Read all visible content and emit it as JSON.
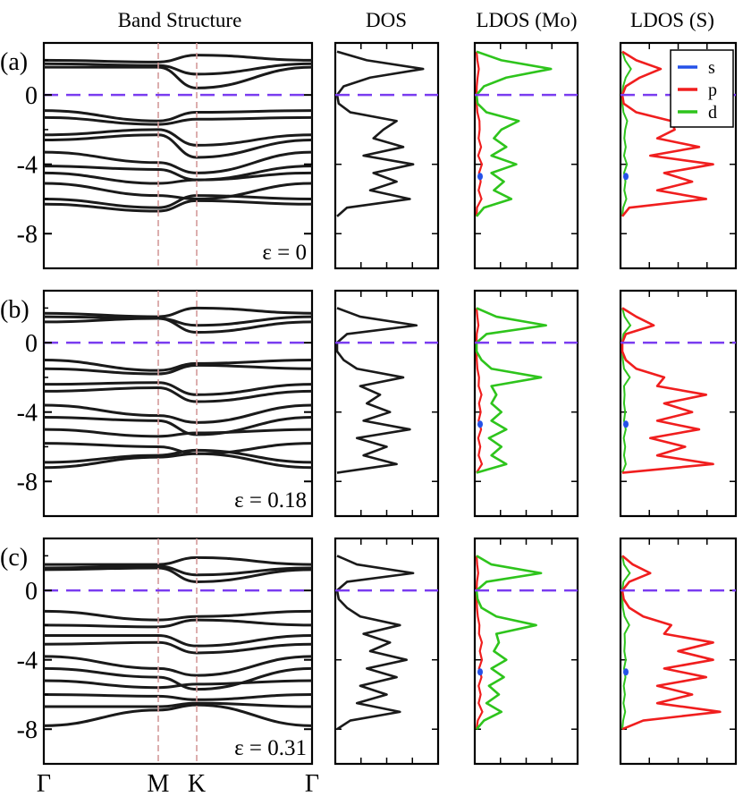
{
  "figure": {
    "column_titles": [
      "Band Structure",
      "DOS",
      "LDOS (Mo)",
      "LDOS (S)"
    ],
    "kpoint_labels": [
      "Γ",
      "M",
      "K",
      "Γ"
    ],
    "legend": [
      {
        "label": "s",
        "color": "#2451e8"
      },
      {
        "label": "p",
        "color": "#f01e1e"
      },
      {
        "label": "d",
        "color": "#2ec41c"
      }
    ],
    "colors": {
      "bands": "#1a1a1a",
      "fermi": "#7a3cf0",
      "kline": "#d49a9a"
    }
  },
  "chart_data": [
    {
      "type": "line",
      "panel": "(a)",
      "strain_label": "ε = 0",
      "ylim": [
        -10,
        3
      ],
      "yticks": [
        0,
        -4,
        -8
      ],
      "bands": [
        [
          -6.3,
          -6.7,
          -6.1,
          -6.3
        ],
        [
          -6.0,
          -6.5,
          -5.8,
          -6.0
        ],
        [
          -5.1,
          -5.8,
          -6.0,
          -5.1
        ],
        [
          -4.5,
          -5.1,
          -4.9,
          -4.5
        ],
        [
          -4.1,
          -4.3,
          -4.9,
          -4.1
        ],
        [
          -3.3,
          -3.9,
          -4.5,
          -3.3
        ],
        [
          -2.6,
          -2.3,
          -3.6,
          -2.6
        ],
        [
          -2.3,
          -2.0,
          -2.9,
          -2.3
        ],
        [
          -1.3,
          -1.7,
          -1.4,
          -1.3
        ],
        [
          -0.9,
          -1.5,
          -1.0,
          -0.9
        ],
        [
          1.6,
          1.6,
          0.4,
          1.6
        ],
        [
          1.8,
          1.7,
          1.2,
          1.8
        ],
        [
          2.0,
          1.9,
          2.3,
          2.0
        ]
      ],
      "dos_energy": [
        -7.0,
        -6.5,
        -6.0,
        -5.5,
        -5.0,
        -4.5,
        -4.0,
        -3.5,
        -3.0,
        -2.5,
        -2.0,
        -1.5,
        -1.0,
        -0.5,
        0.0,
        0.5,
        1.0,
        1.5,
        2.0,
        2.5
      ],
      "dos": [
        0.0,
        0.3,
        2.2,
        1.0,
        1.8,
        1.1,
        2.3,
        0.8,
        2.0,
        1.1,
        1.4,
        1.8,
        0.4,
        0.05,
        0.0,
        0.2,
        1.0,
        2.6,
        0.9,
        0.0
      ],
      "ldos_mo_d": [
        0.0,
        0.15,
        0.7,
        0.35,
        0.55,
        0.3,
        0.8,
        0.3,
        0.6,
        0.35,
        0.5,
        0.85,
        0.2,
        0.02,
        0.0,
        0.15,
        0.6,
        1.5,
        0.5,
        0.0
      ],
      "ldos_s_p": [
        0.0,
        0.1,
        1.2,
        0.5,
        1.0,
        0.6,
        1.3,
        0.4,
        1.1,
        0.5,
        0.75,
        0.7,
        0.2,
        0.02,
        0.0,
        0.05,
        0.25,
        0.55,
        0.2,
        0.0
      ]
    },
    {
      "type": "line",
      "panel": "(b)",
      "strain_label": "ε = 0.18",
      "ylim": [
        -10,
        3
      ],
      "yticks": [
        0,
        -4,
        -8
      ],
      "bands": [
        [
          -7.2,
          -6.6,
          -6.4,
          -7.2
        ],
        [
          -6.9,
          -6.5,
          -6.2,
          -6.9
        ],
        [
          -5.8,
          -6.0,
          -6.4,
          -5.8
        ],
        [
          -5.0,
          -5.4,
          -5.2,
          -5.0
        ],
        [
          -4.3,
          -4.5,
          -5.3,
          -4.3
        ],
        [
          -3.6,
          -4.2,
          -4.6,
          -3.6
        ],
        [
          -2.8,
          -2.6,
          -3.4,
          -2.8
        ],
        [
          -2.4,
          -2.3,
          -3.0,
          -2.4
        ],
        [
          -1.5,
          -1.8,
          -1.3,
          -1.5
        ],
        [
          -1.0,
          -1.6,
          -1.2,
          -1.0
        ],
        [
          1.2,
          1.4,
          0.6,
          1.2
        ],
        [
          1.5,
          1.4,
          1.0,
          1.5
        ],
        [
          1.7,
          1.5,
          2.0,
          1.7
        ]
      ],
      "dos_energy": [
        -7.5,
        -7.0,
        -6.5,
        -6.0,
        -5.5,
        -5.0,
        -4.5,
        -4.0,
        -3.5,
        -3.0,
        -2.5,
        -2.0,
        -1.5,
        -1.0,
        -0.5,
        0.0,
        0.5,
        1.0,
        1.5,
        2.0
      ],
      "dos": [
        0.0,
        1.8,
        0.8,
        1.5,
        0.6,
        2.2,
        0.8,
        1.6,
        0.9,
        1.3,
        0.7,
        2.0,
        0.6,
        0.2,
        0.0,
        0.0,
        0.3,
        2.4,
        0.7,
        0.0
      ],
      "ldos_mo_d": [
        0.0,
        0.6,
        0.3,
        0.5,
        0.25,
        0.6,
        0.3,
        0.5,
        0.3,
        0.4,
        0.3,
        1.3,
        0.3,
        0.1,
        0.0,
        0.0,
        0.2,
        1.4,
        0.4,
        0.0
      ],
      "ldos_s_p": [
        0.0,
        1.3,
        0.5,
        0.9,
        0.4,
        1.1,
        0.5,
        1.0,
        0.6,
        1.2,
        0.5,
        0.6,
        0.2,
        0.05,
        0.0,
        0.0,
        0.05,
        0.45,
        0.2,
        0.0
      ]
    },
    {
      "type": "line",
      "panel": "(c)",
      "strain_label": "ε = 0.31",
      "ylim": [
        -10,
        3
      ],
      "yticks": [
        0,
        -4,
        -8
      ],
      "bands": [
        [
          -7.8,
          -6.9,
          -6.6,
          -7.8
        ],
        [
          -6.7,
          -6.7,
          -6.5,
          -6.7
        ],
        [
          -6.0,
          -6.1,
          -6.3,
          -6.0
        ],
        [
          -5.2,
          -5.6,
          -5.4,
          -5.2
        ],
        [
          -4.5,
          -5.0,
          -5.7,
          -4.5
        ],
        [
          -3.8,
          -4.5,
          -4.9,
          -3.8
        ],
        [
          -3.1,
          -3.0,
          -3.6,
          -3.1
        ],
        [
          -2.6,
          -2.6,
          -3.2,
          -2.6
        ],
        [
          -2.0,
          -2.1,
          -1.7,
          -2.0
        ],
        [
          -1.2,
          -1.7,
          -1.5,
          -1.2
        ],
        [
          1.2,
          1.3,
          0.5,
          1.2
        ],
        [
          1.3,
          1.4,
          0.9,
          1.3
        ],
        [
          1.5,
          1.5,
          1.9,
          1.5
        ]
      ],
      "dos_energy": [
        -8.0,
        -7.5,
        -7.0,
        -6.5,
        -6.0,
        -5.5,
        -5.0,
        -4.5,
        -4.0,
        -3.5,
        -3.0,
        -2.5,
        -2.0,
        -1.5,
        -1.0,
        -0.5,
        0.0,
        0.5,
        1.0,
        1.5,
        2.0
      ],
      "dos": [
        0.0,
        0.4,
        1.9,
        0.6,
        1.5,
        0.7,
        1.8,
        0.9,
        2.1,
        1.0,
        1.6,
        0.8,
        1.9,
        0.7,
        0.3,
        0.05,
        0.0,
        0.3,
        2.3,
        0.6,
        0.0
      ],
      "ldos_mo_d": [
        0.0,
        0.15,
        0.5,
        0.2,
        0.45,
        0.25,
        0.55,
        0.3,
        0.6,
        0.35,
        0.45,
        0.4,
        1.2,
        0.4,
        0.1,
        0.02,
        0.0,
        0.2,
        1.3,
        0.3,
        0.0
      ],
      "ldos_s_p": [
        0.0,
        0.3,
        1.4,
        0.5,
        1.0,
        0.5,
        1.2,
        0.6,
        1.3,
        0.8,
        1.3,
        0.6,
        0.7,
        0.3,
        0.1,
        0.02,
        0.0,
        0.1,
        0.4,
        0.15,
        0.0
      ]
    }
  ]
}
